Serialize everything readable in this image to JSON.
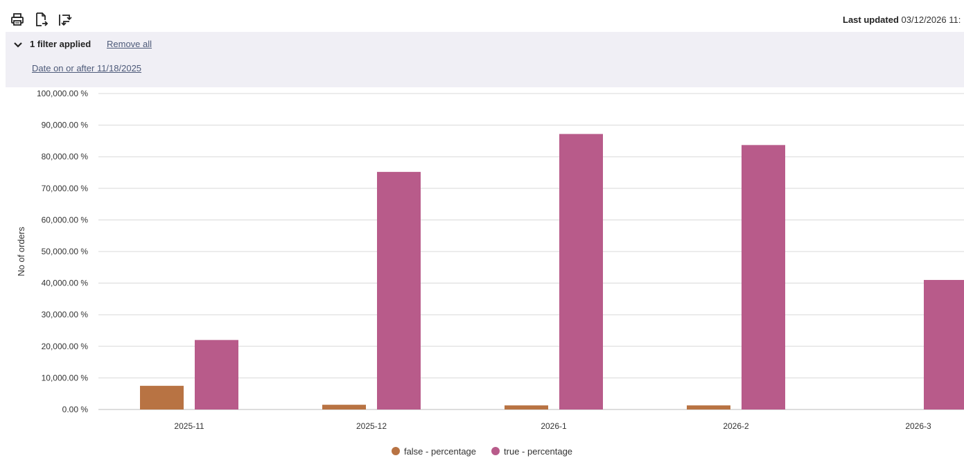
{
  "toolbar": {
    "print_icon": "printer-icon",
    "export_icon": "export-file-icon",
    "rotate_icon": "swap-axes-icon",
    "last_updated_label": "Last updated",
    "last_updated_value": "03/12/2026 11:"
  },
  "filters": {
    "count_label": "1 filter applied",
    "remove_all_label": "Remove all",
    "items": [
      "Date on or after 11/18/2025"
    ]
  },
  "colors": {
    "false_series": "#b87343",
    "true_series": "#b85b8a",
    "grid": "#d8d8d8",
    "axis_text": "#333333"
  },
  "chart_data": {
    "type": "bar",
    "categories": [
      "2025-11",
      "2025-12",
      "2026-1",
      "2026-2",
      "2026-3"
    ],
    "series": [
      {
        "name": "false - percentage",
        "values": [
          7500,
          1500,
          1300,
          1300,
          0
        ]
      },
      {
        "name": "true - percentage",
        "values": [
          22000,
          75200,
          87200,
          83700,
          41000
        ]
      }
    ],
    "ylabel": "No of orders",
    "ylim": [
      0,
      100000
    ],
    "yticks": [
      "0.00 %",
      "10,000.00 %",
      "20,000.00 %",
      "30,000.00 %",
      "40,000.00 %",
      "50,000.00 %",
      "60,000.00 %",
      "70,000.00 %",
      "80,000.00 %",
      "90,000.00 %",
      "100,000.00 %"
    ],
    "grid": true,
    "legend": "bottom-center"
  }
}
